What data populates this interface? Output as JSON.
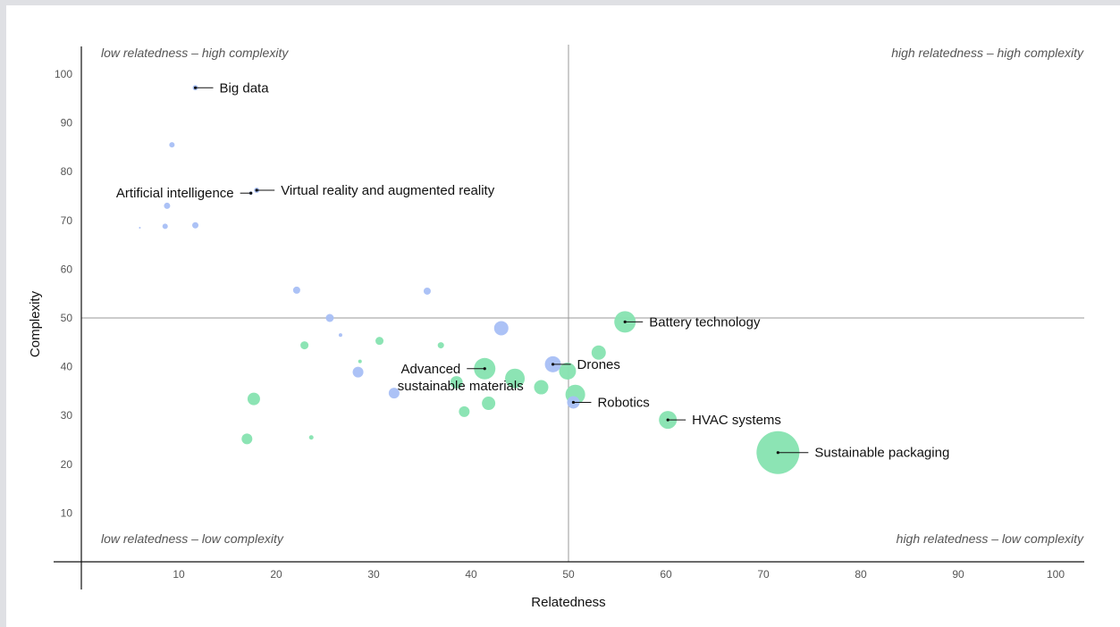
{
  "chart_data": {
    "type": "scatter",
    "title": "",
    "xlabel": "Relatedness",
    "ylabel": "Complexity",
    "xlim": [
      0,
      103
    ],
    "ylim": [
      0,
      105
    ],
    "x_ticks": [
      10,
      20,
      30,
      40,
      50,
      60,
      70,
      80,
      90,
      100
    ],
    "y_ticks": [
      10,
      20,
      30,
      40,
      50,
      60,
      70,
      80,
      90,
      100
    ],
    "reference_lines": {
      "x": 50,
      "y": 50
    },
    "quadrant_labels": {
      "top_left": "low relatedness – high complexity",
      "top_right": "high relatedness – high complexity",
      "bottom_left": "low relatedness – low complexity",
      "bottom_right": "high relatedness – low complexity"
    },
    "colors": {
      "blue": "#a8bff5",
      "green": "#86e3b0",
      "axis": "#111111",
      "ref": "#999999"
    },
    "points": [
      {
        "x": 11.7,
        "y": 97.2,
        "size": 3,
        "color": "blue",
        "label": "Big data"
      },
      {
        "x": 9.3,
        "y": 85.5,
        "size": 3,
        "color": "blue"
      },
      {
        "x": 18.0,
        "y": 76.2,
        "size": 3,
        "color": "blue",
        "label": "Virtual reality and augmented reality"
      },
      {
        "x": 17.4,
        "y": 75.6,
        "size": 2,
        "color": "blue",
        "label": "Artificial intelligence"
      },
      {
        "x": 8.8,
        "y": 73.0,
        "size": 3.5,
        "color": "blue"
      },
      {
        "x": 8.6,
        "y": 68.8,
        "size": 3,
        "color": "blue"
      },
      {
        "x": 11.7,
        "y": 69.0,
        "size": 3.5,
        "color": "blue"
      },
      {
        "x": 6.0,
        "y": 68.5,
        "size": 1,
        "color": "blue"
      },
      {
        "x": 22.1,
        "y": 55.7,
        "size": 4,
        "color": "blue"
      },
      {
        "x": 35.5,
        "y": 55.5,
        "size": 4,
        "color": "blue"
      },
      {
        "x": 25.5,
        "y": 50.0,
        "size": 4.5,
        "color": "blue"
      },
      {
        "x": 26.6,
        "y": 46.5,
        "size": 2,
        "color": "blue"
      },
      {
        "x": 43.1,
        "y": 47.9,
        "size": 8,
        "color": "blue"
      },
      {
        "x": 28.4,
        "y": 38.9,
        "size": 6,
        "color": "blue"
      },
      {
        "x": 32.1,
        "y": 34.6,
        "size": 6,
        "color": "blue"
      },
      {
        "x": 48.4,
        "y": 40.5,
        "size": 9,
        "color": "blue",
        "label": "Drones"
      },
      {
        "x": 50.5,
        "y": 32.7,
        "size": 7,
        "color": "blue",
        "label": "Robotics"
      },
      {
        "x": 55.8,
        "y": 49.2,
        "size": 12,
        "color": "green",
        "label": "Battery technology"
      },
      {
        "x": 22.9,
        "y": 44.4,
        "size": 4.5,
        "color": "green"
      },
      {
        "x": 30.6,
        "y": 45.3,
        "size": 4.5,
        "color": "green"
      },
      {
        "x": 36.9,
        "y": 44.4,
        "size": 3.5,
        "color": "green"
      },
      {
        "x": 28.6,
        "y": 41.1,
        "size": 2,
        "color": "green"
      },
      {
        "x": 53.1,
        "y": 42.9,
        "size": 8,
        "color": "green"
      },
      {
        "x": 41.4,
        "y": 39.6,
        "size": 12,
        "color": "green",
        "label": "Advanced sustainable materials"
      },
      {
        "x": 44.5,
        "y": 37.6,
        "size": 11,
        "color": "green"
      },
      {
        "x": 38.5,
        "y": 36.8,
        "size": 7,
        "color": "green"
      },
      {
        "x": 47.2,
        "y": 35.8,
        "size": 8,
        "color": "green"
      },
      {
        "x": 49.9,
        "y": 39.1,
        "size": 9.5,
        "color": "green"
      },
      {
        "x": 50.7,
        "y": 34.3,
        "size": 11,
        "color": "green"
      },
      {
        "x": 17.7,
        "y": 33.4,
        "size": 7,
        "color": "green"
      },
      {
        "x": 41.8,
        "y": 32.5,
        "size": 7.5,
        "color": "green"
      },
      {
        "x": 39.3,
        "y": 30.8,
        "size": 6,
        "color": "green"
      },
      {
        "x": 60.2,
        "y": 29.1,
        "size": 10,
        "color": "green",
        "label": "HVAC systems"
      },
      {
        "x": 17.0,
        "y": 25.2,
        "size": 6,
        "color": "green"
      },
      {
        "x": 23.6,
        "y": 25.5,
        "size": 2.5,
        "color": "green"
      },
      {
        "x": 71.5,
        "y": 22.4,
        "size": 24,
        "color": "green",
        "label": "Sustainable packaging"
      }
    ]
  }
}
